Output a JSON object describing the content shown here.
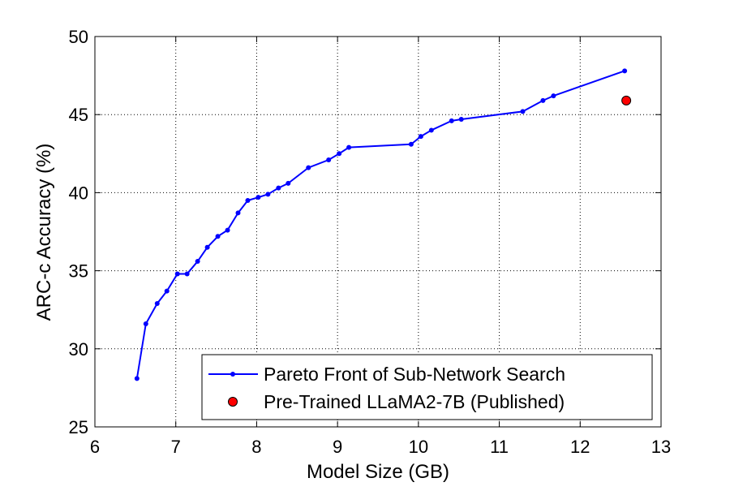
{
  "chart_data": {
    "type": "line",
    "xlabel": "Model Size (GB)",
    "ylabel": "ARC-c Accuracy (%)",
    "xlim": [
      6,
      13
    ],
    "ylim": [
      25,
      50
    ],
    "xticks": [
      6,
      7,
      8,
      9,
      10,
      11,
      12,
      13
    ],
    "yticks": [
      25,
      30,
      35,
      40,
      45,
      50
    ],
    "grid": true,
    "legend_position": "bottom-right",
    "series": [
      {
        "name": "Pareto Front of Sub-Network Search",
        "color": "#0000ff",
        "marker": "dot",
        "x": [
          6.52,
          6.63,
          6.77,
          6.89,
          7.02,
          7.14,
          7.27,
          7.39,
          7.52,
          7.64,
          7.77,
          7.89,
          8.02,
          8.14,
          8.27,
          8.39,
          8.64,
          8.89,
          9.02,
          9.14,
          9.91,
          10.03,
          10.16,
          10.41,
          10.53,
          11.29,
          11.54,
          11.67,
          12.55
        ],
        "y": [
          28.1,
          31.6,
          32.9,
          33.7,
          34.8,
          34.8,
          35.6,
          36.5,
          37.2,
          37.6,
          38.7,
          39.5,
          39.7,
          39.9,
          40.3,
          40.6,
          41.6,
          42.1,
          42.5,
          42.9,
          43.1,
          43.6,
          44.0,
          44.6,
          44.7,
          45.2,
          45.9,
          46.2,
          47.8
        ]
      },
      {
        "name": "Pre-Trained LLaMA2-7B (Published)",
        "color": "#ff0000",
        "marker": "circle",
        "x": [
          12.57
        ],
        "y": [
          45.9
        ]
      }
    ]
  }
}
